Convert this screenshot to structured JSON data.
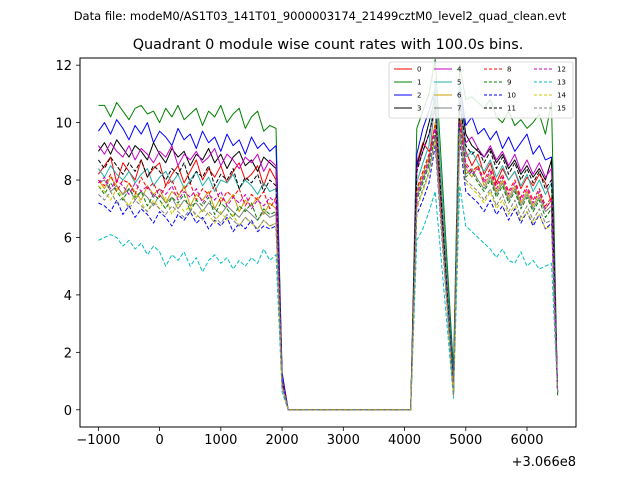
{
  "suptitle": "Data file: modeM0/AS1T03_141T01_9000003174_21499cztM0_level2_quad_clean.evt",
  "chart_data": {
    "type": "line",
    "title": "Quadrant 0 module wise count rates with 100.0s bins.",
    "xlabel": "",
    "ylabel": "",
    "x_offset_label": "+3.066e8",
    "xlim": [
      -1300,
      6800
    ],
    "ylim": [
      -0.6,
      12.25
    ],
    "xticks": [
      -1000,
      0,
      1000,
      2000,
      3000,
      4000,
      5000,
      6000
    ],
    "xtick_labels": [
      "−1000",
      "0",
      "1000",
      "2000",
      "3000",
      "4000",
      "5000",
      "6000"
    ],
    "yticks": [
      0,
      2,
      4,
      6,
      8,
      10,
      12
    ],
    "ytick_labels": [
      "0",
      "2",
      "4",
      "6",
      "8",
      "10",
      "12"
    ],
    "legend_position": "top-right",
    "x_segments": [
      [
        -1000,
        1900
      ],
      [
        2000,
        2100
      ],
      [
        2200,
        4100
      ],
      [
        4200,
        4300
      ],
      [
        4400,
        4700
      ],
      [
        4800,
        4900
      ],
      [
        5000,
        6400
      ],
      [
        6500,
        6500
      ]
    ],
    "series": [
      {
        "name": "0",
        "color": "#ff0000",
        "dash": "solid",
        "base": [
          8.2,
          8.5,
          8.8,
          7.9,
          8.6,
          8.3,
          8.0,
          8.7,
          8.1,
          8.4,
          8.6,
          7.8,
          8.2,
          8.5,
          7.9,
          8.3,
          8.7,
          8.0,
          8.4,
          8.1,
          8.5,
          7.9,
          8.3,
          8.6,
          8.0,
          8.2,
          8.5,
          7.8,
          8.4,
          8.0
        ],
        "seg_vals": [
          [
            1.2,
            0.0
          ],
          [
            8.6,
            9.3,
            9.0,
            9.4
          ],
          [
            0.8,
            10.2
          ],
          [
            9.0,
            8.5,
            8.9,
            8.2,
            8.6,
            7.9,
            8.4,
            8.0,
            8.3,
            7.7,
            8.1,
            7.8,
            8.2,
            7.9,
            7.2
          ],
          [
            0.6
          ]
        ]
      },
      {
        "name": "1",
        "color": "#008000",
        "dash": "solid",
        "base": [
          10.6,
          10.6,
          10.2,
          10.7,
          10.4,
          10.1,
          10.5,
          10.6,
          10.3,
          10.4,
          10.0,
          10.5,
          10.2,
          10.6,
          10.1,
          10.3,
          10.5,
          9.9,
          10.4,
          10.2,
          10.6,
          10.0,
          10.3,
          10.5,
          9.8,
          10.2,
          10.4,
          9.7,
          9.9,
          9.8
        ],
        "seg_vals": [
          [
            1.2,
            0.0
          ],
          [
            9.8,
            10.4,
            11.0,
            12.2
          ],
          [
            1.4,
            12.0
          ],
          [
            10.8,
            10.9,
            10.7,
            10.5,
            10.8,
            10.2,
            10.0,
            10.4,
            9.9,
            10.1,
            9.8,
            10.0,
            10.3,
            9.6,
            10.7
          ],
          [
            0.5
          ]
        ]
      },
      {
        "name": "2",
        "color": "#0000ff",
        "dash": "solid",
        "base": [
          9.7,
          10.0,
          9.6,
          10.1,
          9.8,
          9.4,
          9.9,
          9.6,
          10.0,
          9.3,
          9.7,
          9.5,
          9.2,
          9.8,
          9.4,
          9.6,
          9.1,
          9.7,
          9.3,
          9.5,
          9.0,
          9.6,
          9.2,
          9.4,
          8.9,
          9.5,
          9.1,
          9.3,
          9.0,
          9.2
        ],
        "seg_vals": [
          [
            1.3,
            0.0
          ],
          [
            8.9,
            9.8,
            10.4,
            11.2
          ],
          [
            1.0,
            11.4
          ],
          [
            9.9,
            10.2,
            9.6,
            9.8,
            9.4,
            9.7,
            9.1,
            9.5,
            9.0,
            9.3,
            9.6,
            8.9,
            9.2,
            8.7,
            8.8
          ],
          [
            0.7
          ]
        ]
      },
      {
        "name": "3",
        "color": "#000000",
        "dash": "solid",
        "base": [
          9.0,
          9.3,
          8.9,
          9.4,
          9.1,
          8.8,
          9.2,
          9.0,
          8.7,
          9.3,
          8.9,
          8.6,
          9.1,
          8.8,
          9.0,
          8.5,
          8.9,
          8.7,
          9.1,
          8.6,
          8.9,
          8.4,
          8.8,
          9.0,
          8.5,
          8.7,
          8.3,
          8.8,
          8.6,
          8.4
        ],
        "seg_vals": [
          [
            1.0,
            0.0
          ],
          [
            8.5,
            9.2,
            10.0,
            10.9
          ],
          [
            0.7,
            11.1
          ],
          [
            9.6,
            9.2,
            9.0,
            8.8,
            9.1,
            8.6,
            8.9,
            8.4,
            8.7,
            8.2,
            8.5,
            8.1,
            8.4,
            8.0,
            8.7
          ],
          [
            0.6
          ]
        ]
      },
      {
        "name": "4",
        "color": "#c800c8",
        "dash": "solid",
        "base": [
          9.2,
          8.9,
          9.3,
          9.0,
          8.8,
          9.2,
          8.7,
          9.1,
          8.9,
          8.6,
          9.0,
          8.8,
          9.2,
          8.5,
          8.9,
          8.7,
          9.0,
          8.6,
          8.8,
          9.1,
          8.5,
          8.9,
          8.7,
          8.4,
          8.8,
          8.6,
          8.9,
          8.3,
          8.7,
          8.5
        ],
        "seg_vals": [
          [
            1.1,
            0.0
          ],
          [
            8.4,
            9.0,
            9.6,
            10.6
          ],
          [
            0.6,
            10.8
          ],
          [
            9.3,
            9.5,
            9.1,
            8.8,
            9.2,
            8.7,
            9.0,
            8.5,
            8.9,
            8.3,
            8.7,
            8.2,
            8.6,
            8.1,
            8.4
          ],
          [
            0.6
          ]
        ]
      },
      {
        "name": "5",
        "color": "#20b2aa",
        "dash": "solid",
        "base": [
          8.4,
          8.1,
          8.5,
          8.2,
          8.0,
          8.3,
          7.9,
          8.2,
          8.4,
          7.8,
          8.1,
          8.3,
          7.9,
          8.2,
          7.7,
          8.0,
          8.3,
          7.8,
          8.1,
          7.6,
          8.0,
          7.9,
          8.2,
          7.7,
          8.0,
          7.8,
          7.5,
          7.9,
          7.6,
          7.7
        ],
        "seg_vals": [
          [
            1.0,
            0.0
          ],
          [
            7.9,
            8.6,
            9.2,
            11.4
          ],
          [
            0.8,
            11.6
          ],
          [
            8.8,
            9.0,
            8.6,
            8.3,
            8.7,
            8.1,
            8.5,
            8.0,
            8.3,
            7.8,
            8.2,
            7.6,
            8.0,
            7.5,
            7.9
          ],
          [
            0.6
          ]
        ]
      },
      {
        "name": "6",
        "color": "#c8a000",
        "dash": "solid",
        "base": [
          8.0,
          7.7,
          8.1,
          7.8,
          7.5,
          7.9,
          7.6,
          7.3,
          7.8,
          7.5,
          7.7,
          7.2,
          7.6,
          7.4,
          7.8,
          7.1,
          7.5,
          7.3,
          7.6,
          7.0,
          7.4,
          7.2,
          7.5,
          6.9,
          7.3,
          7.1,
          7.4,
          6.8,
          7.2,
          7.0
        ],
        "seg_vals": [
          [
            0.9,
            0.0
          ],
          [
            7.6,
            8.2,
            8.8,
            10.0
          ],
          [
            0.5,
            10.2
          ],
          [
            8.4,
            8.1,
            8.5,
            7.8,
            8.2,
            7.6,
            8.0,
            7.4,
            7.8,
            7.2,
            7.6,
            7.1,
            7.5,
            7.0,
            7.3
          ],
          [
            0.6
          ]
        ]
      },
      {
        "name": "7",
        "color": "#808080",
        "dash": "solid",
        "base": [
          7.9,
          8.0,
          7.6,
          7.8,
          7.5,
          7.7,
          7.3,
          7.6,
          7.4,
          7.1,
          7.5,
          7.2,
          7.4,
          7.0,
          7.3,
          7.1,
          7.2,
          6.9,
          7.2,
          7.0,
          6.8,
          7.1,
          6.9,
          6.7,
          7.0,
          6.8,
          6.6,
          6.9,
          6.7,
          6.8
        ],
        "seg_vals": [
          [
            0.9,
            0.0
          ],
          [
            7.4,
            8.0,
            8.6,
            10.9
          ],
          [
            0.6,
            11.0
          ],
          [
            8.2,
            8.4,
            8.0,
            7.7,
            8.1,
            7.5,
            7.9,
            7.3,
            7.7,
            7.1,
            7.5,
            7.0,
            7.4,
            6.9,
            7.1
          ],
          [
            0.6
          ]
        ]
      },
      {
        "name": "8",
        "color": "#ff0000",
        "dash": "dashed",
        "base": [
          8.0,
          7.8,
          8.2,
          7.6,
          8.0,
          7.9,
          7.5,
          8.1,
          7.7,
          7.9,
          7.4,
          7.8,
          8.0,
          7.5,
          7.7,
          7.9,
          7.3,
          7.7,
          7.5,
          7.8,
          7.2,
          7.6,
          7.4,
          7.7,
          7.1,
          7.5,
          7.3,
          7.6,
          7.0,
          7.4
        ],
        "seg_vals": [
          [
            0.9,
            0.0
          ],
          [
            7.7,
            8.3,
            8.9,
            9.9
          ],
          [
            0.6,
            10.1
          ],
          [
            8.6,
            8.3,
            8.5,
            8.0,
            8.4,
            7.8,
            8.2,
            7.6,
            8.0,
            7.4,
            7.8,
            7.3,
            7.7,
            7.1,
            7.4
          ],
          [
            0.6
          ]
        ]
      },
      {
        "name": "9",
        "color": "#008000",
        "dash": "dashed",
        "base": [
          7.8,
          7.5,
          7.9,
          7.6,
          7.3,
          7.7,
          7.4,
          7.6,
          7.1,
          7.5,
          7.3,
          7.0,
          7.4,
          7.2,
          7.5,
          6.9,
          7.3,
          7.1,
          7.4,
          6.8,
          7.2,
          7.0,
          6.7,
          7.1,
          6.9,
          7.2,
          6.6,
          7.0,
          6.8,
          6.9
        ],
        "seg_vals": [
          [
            0.8,
            0.0
          ],
          [
            7.3,
            7.9,
            8.5,
            9.6
          ],
          [
            0.5,
            9.8
          ],
          [
            8.1,
            8.3,
            7.9,
            7.6,
            8.0,
            7.4,
            7.8,
            7.2,
            7.6,
            7.0,
            7.4,
            6.9,
            7.3,
            6.7,
            7.0
          ],
          [
            0.6
          ]
        ]
      },
      {
        "name": "10",
        "color": "#0000ff",
        "dash": "dashed",
        "base": [
          7.2,
          7.1,
          6.9,
          7.3,
          6.8,
          7.1,
          6.7,
          7.0,
          6.8,
          6.5,
          6.9,
          6.7,
          6.4,
          6.8,
          6.6,
          6.9,
          6.5,
          6.7,
          6.3,
          6.6,
          6.4,
          6.7,
          6.2,
          6.5,
          6.3,
          6.6,
          6.2,
          6.4,
          6.3,
          6.4
        ],
        "seg_vals": [
          [
            0.8,
            0.0
          ],
          [
            6.8,
            7.3,
            7.9,
            9.2
          ],
          [
            0.5,
            9.4
          ],
          [
            7.6,
            7.4,
            7.2,
            6.9,
            7.3,
            6.8,
            7.1,
            6.6,
            7.0,
            6.5,
            6.9,
            6.4,
            6.8,
            6.3,
            6.5
          ],
          [
            0.6
          ]
        ]
      },
      {
        "name": "11",
        "color": "#000000",
        "dash": "dashed",
        "base": [
          8.7,
          8.4,
          8.8,
          8.5,
          8.2,
          8.6,
          8.3,
          8.7,
          8.1,
          8.5,
          8.3,
          8.0,
          8.4,
          8.2,
          8.6,
          7.9,
          8.3,
          8.1,
          8.5,
          7.8,
          8.2,
          8.0,
          8.4,
          7.7,
          8.1,
          7.9,
          8.2,
          7.6,
          8.0,
          7.8
        ],
        "seg_vals": [
          [
            1.0,
            0.0
          ],
          [
            8.3,
            9.0,
            9.6,
            10.5
          ],
          [
            0.7,
            10.7
          ],
          [
            9.2,
            8.9,
            9.1,
            8.6,
            9.0,
            8.4,
            8.8,
            8.2,
            8.6,
            8.0,
            8.4,
            7.9,
            8.3,
            7.7,
            8.0
          ],
          [
            0.6
          ]
        ]
      },
      {
        "name": "12",
        "color": "#c800c8",
        "dash": "dashed",
        "base": [
          7.9,
          8.1,
          7.7,
          8.0,
          7.8,
          7.5,
          7.9,
          7.6,
          7.8,
          7.4,
          7.7,
          7.5,
          7.8,
          7.3,
          7.6,
          7.4,
          7.7,
          7.2,
          7.5,
          7.3,
          7.6,
          7.1,
          7.4,
          7.2,
          7.5,
          7.0,
          7.3,
          7.1,
          7.4,
          7.2
        ],
        "seg_vals": [
          [
            0.9,
            0.0
          ],
          [
            7.5,
            8.1,
            8.7,
            9.8
          ],
          [
            0.6,
            10.0
          ],
          [
            8.5,
            8.2,
            8.4,
            7.9,
            8.3,
            7.7,
            8.1,
            7.5,
            7.9,
            7.3,
            7.7,
            7.2,
            7.6,
            7.0,
            7.3
          ],
          [
            0.6
          ]
        ]
      },
      {
        "name": "13",
        "color": "#00c0c0",
        "dash": "dashed",
        "base": [
          5.9,
          6.0,
          6.1,
          6.0,
          5.7,
          5.9,
          5.6,
          5.8,
          5.4,
          5.7,
          5.5,
          5.0,
          5.4,
          5.2,
          5.5,
          5.0,
          5.3,
          4.8,
          5.2,
          5.4,
          5.1,
          5.3,
          4.9,
          5.2,
          5.0,
          5.3,
          5.1,
          5.6,
          5.2,
          5.4
        ],
        "seg_vals": [
          [
            0.6,
            0.0
          ],
          [
            5.9,
            6.3,
            6.9,
            7.6
          ],
          [
            0.4,
            7.8
          ],
          [
            6.4,
            6.2,
            6.0,
            5.8,
            5.6,
            5.3,
            5.6,
            5.2,
            5.1,
            5.5,
            5.0,
            5.2,
            4.9,
            5.0,
            5.1
          ],
          [
            0.6
          ]
        ]
      },
      {
        "name": "14",
        "color": "#c8c800",
        "dash": "dashed",
        "base": [
          7.8,
          7.6,
          7.3,
          7.7,
          7.4,
          7.1,
          7.5,
          7.2,
          6.9,
          7.3,
          7.0,
          7.4,
          6.8,
          7.2,
          6.9,
          7.1,
          6.7,
          7.0,
          6.8,
          6.5,
          6.9,
          6.6,
          6.8,
          6.4,
          6.7,
          6.5,
          6.3,
          6.6,
          6.4,
          6.5
        ],
        "seg_vals": [
          [
            0.8,
            0.0
          ],
          [
            7.0,
            7.6,
            8.2,
            9.4
          ],
          [
            0.5,
            9.6
          ],
          [
            7.9,
            7.7,
            7.5,
            7.2,
            7.6,
            7.0,
            7.3,
            6.8,
            7.1,
            6.6,
            6.9,
            6.5,
            6.8,
            6.3,
            6.4
          ],
          [
            0.6
          ]
        ]
      },
      {
        "name": "15",
        "color": "#808080",
        "dash": "dashed",
        "base": [
          7.5,
          7.3,
          7.6,
          7.2,
          7.4,
          7.0,
          7.3,
          7.1,
          6.9,
          7.2,
          7.0,
          6.8,
          7.1,
          6.9,
          6.7,
          7.0,
          6.8,
          6.6,
          6.9,
          6.7,
          6.5,
          6.8,
          6.6,
          6.4,
          6.7,
          6.5,
          6.3,
          6.6,
          6.4,
          6.5
        ],
        "seg_vals": [
          [
            0.8,
            0.0
          ],
          [
            7.1,
            7.7,
            8.3,
            9.5
          ],
          [
            0.5,
            9.7
          ],
          [
            8.0,
            7.8,
            7.6,
            7.3,
            7.7,
            7.1,
            7.5,
            6.9,
            7.3,
            6.7,
            7.1,
            6.6,
            7.0,
            6.5,
            6.6
          ],
          [
            0.6
          ]
        ]
      }
    ]
  }
}
